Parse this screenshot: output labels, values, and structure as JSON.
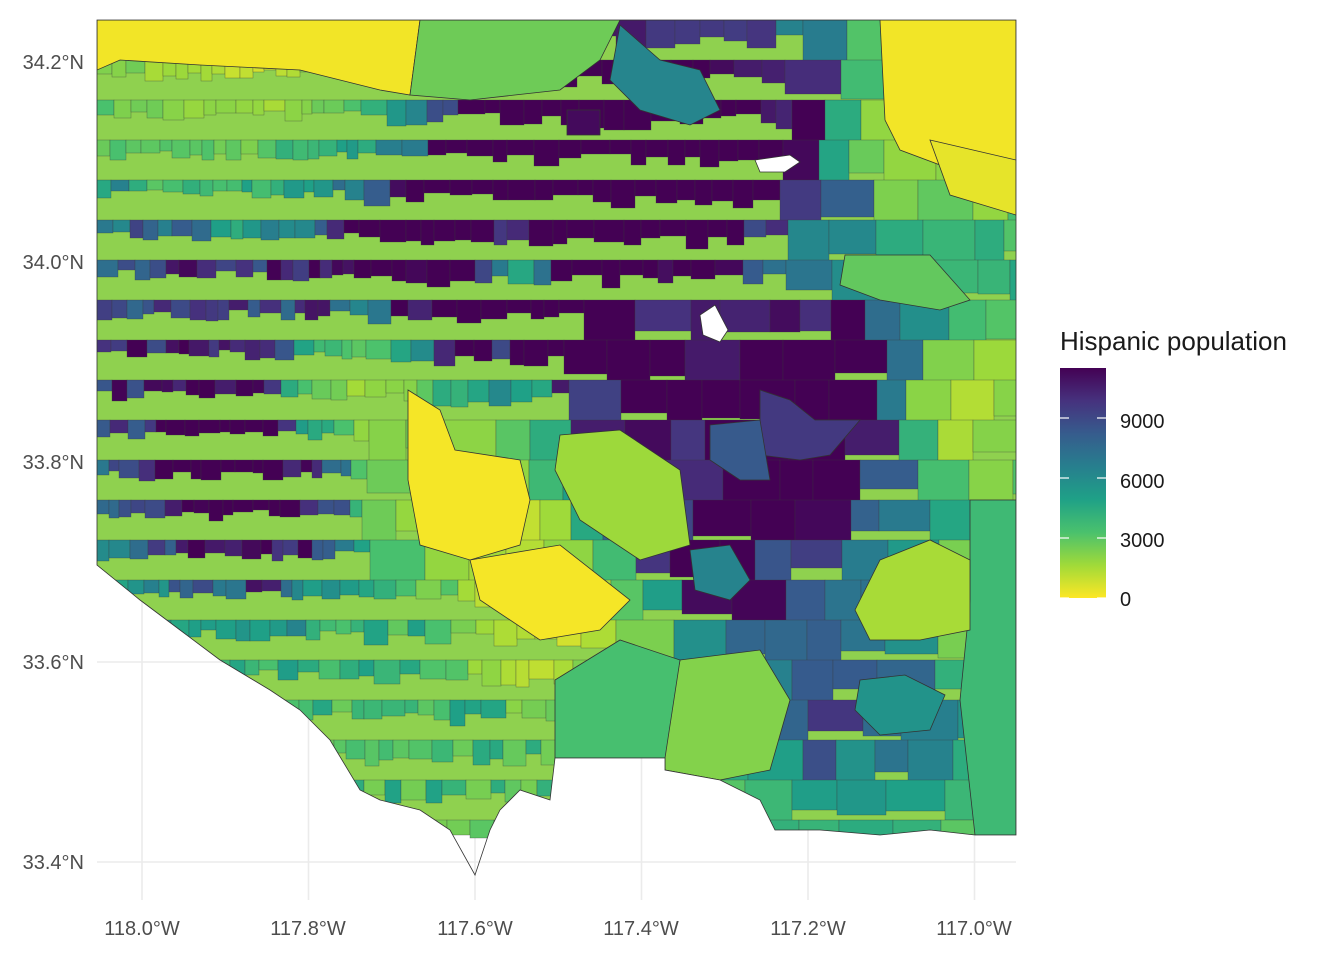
{
  "map": {
    "latitude_ticks": [
      "34.2°N",
      "34.0°N",
      "33.8°N",
      "33.6°N",
      "33.4°N"
    ],
    "longitude_ticks": [
      "118.0°W",
      "117.8°W",
      "117.6°W",
      "117.4°W",
      "117.2°W",
      "117.0°W"
    ],
    "lat_values": [
      34.2,
      34.0,
      33.8,
      33.6,
      33.4
    ],
    "lon_values": [
      -118.0,
      -117.8,
      -117.6,
      -117.4,
      -117.2,
      -117.0
    ]
  },
  "legend": {
    "title": "Hispanic population",
    "labels": [
      "9000",
      "6000",
      "3000",
      "0"
    ],
    "values": [
      9000,
      6000,
      3000,
      0
    ],
    "max": 11500,
    "palette": [
      "#fde725",
      "#a0da39",
      "#4ac16d",
      "#1fa187",
      "#277f8e",
      "#365c8d",
      "#46327e",
      "#440154"
    ]
  }
}
